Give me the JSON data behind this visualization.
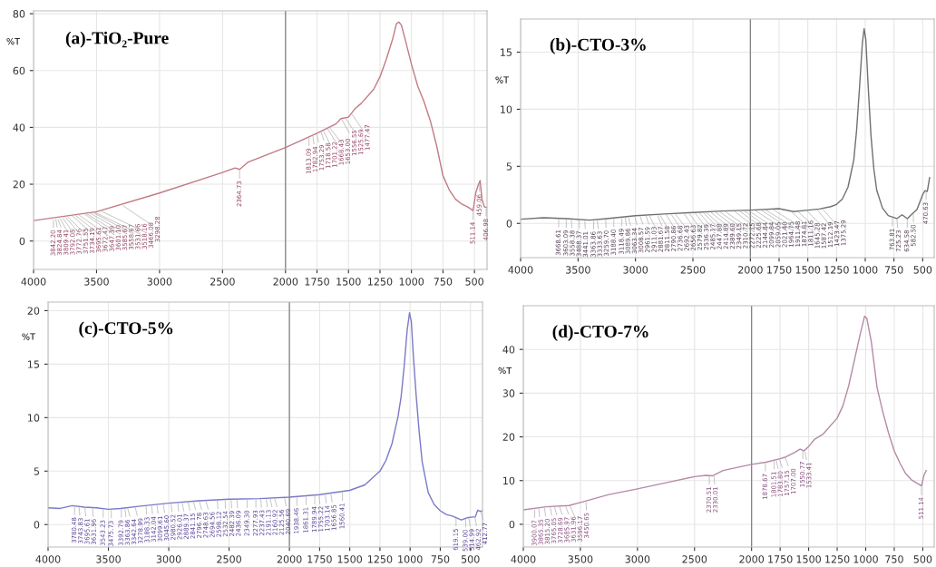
{
  "chart_data": [
    {
      "type": "line",
      "title": "(a)-TiO₂-Pure",
      "ylabel": "%T",
      "xlim": [
        4000,
        400
      ],
      "ylim": [
        -10,
        81
      ],
      "xticks": [
        4000,
        3500,
        3000,
        2500,
        2000,
        1750,
        1500,
        1250,
        1000,
        750,
        500
      ],
      "yticks": [
        0,
        20,
        40,
        60,
        80
      ],
      "grid": true,
      "ref_lines": [
        {
          "axis": "x",
          "value": 2000,
          "color": "#808080"
        }
      ],
      "series": [
        {
          "color": "#c27a84",
          "x": [
            4000,
            3500,
            3000,
            2500,
            2400,
            2364,
            2300,
            2000,
            1750,
            1600,
            1560,
            1500,
            1450,
            1400,
            1300,
            1250,
            1200,
            1150,
            1120,
            1100,
            1080,
            1050,
            1000,
            950,
            900,
            850,
            800,
            750,
            700,
            650,
            600,
            550,
            511,
            490,
            470,
            455,
            440,
            420,
            400
          ],
          "values": [
            7.2,
            10.3,
            16.9,
            24.1,
            25.7,
            25.2,
            27.7,
            32.9,
            37.9,
            41.2,
            43.1,
            43.6,
            46.5,
            48.4,
            53.4,
            57.8,
            63.9,
            71.0,
            76.4,
            77.1,
            76.0,
            71.0,
            62.2,
            54.5,
            49.0,
            42.3,
            33.5,
            23.0,
            18.0,
            14.7,
            13.0,
            11.9,
            10.7,
            16.9,
            19.7,
            21.3,
            14.7,
            11.9,
            11.9
          ]
        }
      ],
      "annotations": [
        {
          "text": "3842.20",
          "x": 3842.2,
          "y": 7.9
        },
        {
          "text": "3824.84",
          "x": 3824.84,
          "y": 8.0
        },
        {
          "text": "3809.41",
          "x": 3809.41,
          "y": 8.1
        },
        {
          "text": "3792.05",
          "x": 3792.05,
          "y": 8.2
        },
        {
          "text": "3772.76",
          "x": 3772.76,
          "y": 8.4
        },
        {
          "text": "3751.55",
          "x": 3751.55,
          "y": 8.6
        },
        {
          "text": "3734.19",
          "x": 3734.19,
          "y": 8.7
        },
        {
          "text": "3695.61",
          "x": 3695.61,
          "y": 9.0
        },
        {
          "text": "3672.47",
          "x": 3672.47,
          "y": 9.2
        },
        {
          "text": "3647.39",
          "x": 3647.39,
          "y": 9.4
        },
        {
          "text": "3601.10",
          "x": 3601.1,
          "y": 9.7
        },
        {
          "text": "3585.67",
          "x": 3585.67,
          "y": 9.8
        },
        {
          "text": "3558.67",
          "x": 3558.67,
          "y": 10.0
        },
        {
          "text": "3531.66",
          "x": 3531.66,
          "y": 10.1
        },
        {
          "text": "3518.16",
          "x": 3518.16,
          "y": 10.2
        },
        {
          "text": "3466.08",
          "x": 3466.08,
          "y": 10.6
        },
        {
          "text": "3298.28",
          "x": 3298.28,
          "y": 12.7
        },
        {
          "text": "2364.73",
          "x": 2364.73,
          "y": 25.2
        },
        {
          "text": "1813.09",
          "x": 1813.09,
          "y": 36.7
        },
        {
          "text": "1782.94",
          "x": 1782.94,
          "y": 37.3
        },
        {
          "text": "1753.29",
          "x": 1753.29,
          "y": 37.9
        },
        {
          "text": "1718.58",
          "x": 1718.58,
          "y": 38.6
        },
        {
          "text": "1701.22",
          "x": 1701.22,
          "y": 39.0
        },
        {
          "text": "1668.43",
          "x": 1668.43,
          "y": 39.8
        },
        {
          "text": "1653.00",
          "x": 1653.0,
          "y": 40.1
        },
        {
          "text": "1556.55",
          "x": 1556.55,
          "y": 43.1
        },
        {
          "text": "1525.69",
          "x": 1525.69,
          "y": 43.4
        },
        {
          "text": "1477.47",
          "x": 1477.47,
          "y": 45.0
        },
        {
          "text": "511.14",
          "x": 511.14,
          "y": 10.7
        },
        {
          "text": "459.06",
          "x": 459.06,
          "y": 20.5
        },
        {
          "text": "406.98",
          "x": 406.98,
          "y": 11.9
        }
      ]
    },
    {
      "type": "line",
      "title": "(b)-CTO-3%",
      "ylabel": "%T",
      "xlim": [
        4000,
        400
      ],
      "ylim": [
        -3,
        17.9
      ],
      "xticks": [
        4000,
        3500,
        3000,
        2500,
        2000,
        1750,
        1500,
        1250,
        1000,
        750,
        500
      ],
      "yticks": [
        0,
        5,
        10,
        15
      ],
      "grid": true,
      "ref_lines": [
        {
          "axis": "x",
          "value": 2000,
          "color": "#808080"
        }
      ],
      "series": [
        {
          "color": "#707070",
          "x": [
            4000,
            3800,
            3600,
            3400,
            3250,
            3000,
            2750,
            2500,
            2250,
            2000,
            1750,
            1625,
            1500,
            1400,
            1300,
            1250,
            1200,
            1150,
            1100,
            1075,
            1050,
            1025,
            1010,
            995,
            975,
            950,
            925,
            900,
            850,
            800,
            760,
            725,
            680,
            634,
            600,
            550,
            500,
            480,
            460,
            440
          ],
          "values": [
            0.37,
            0.5,
            0.42,
            0.29,
            0.42,
            0.68,
            0.82,
            0.95,
            1.08,
            1.16,
            1.29,
            1.03,
            1.16,
            1.26,
            1.47,
            1.66,
            2.13,
            3.18,
            5.55,
            8.2,
            11.9,
            15.8,
            17.05,
            16.1,
            12.1,
            7.66,
            4.76,
            2.9,
            1.34,
            0.68,
            0.55,
            0.42,
            0.76,
            0.42,
            0.76,
            1.21,
            2.53,
            2.87,
            2.8,
            4.0
          ]
        }
      ],
      "annotations": [
        {
          "text": "3668.61",
          "x": 3668.61,
          "y": 0.45
        },
        {
          "text": "3603.09",
          "x": 3603.09,
          "y": 0.42
        },
        {
          "text": "3558.38",
          "x": 3558.38,
          "y": 0.4
        },
        {
          "text": "3488.37",
          "x": 3488.37,
          "y": 0.35
        },
        {
          "text": "3441.01",
          "x": 3441.01,
          "y": 0.3
        },
        {
          "text": "3363.86",
          "x": 3363.86,
          "y": 0.3
        },
        {
          "text": "3333.63",
          "x": 3333.63,
          "y": 0.33
        },
        {
          "text": "3259.70",
          "x": 3259.7,
          "y": 0.4
        },
        {
          "text": "3188.40",
          "x": 3188.4,
          "y": 0.48
        },
        {
          "text": "3118.49",
          "x": 3118.49,
          "y": 0.55
        },
        {
          "text": "3089.86",
          "x": 3089.86,
          "y": 0.58
        },
        {
          "text": "3063.34",
          "x": 3063.34,
          "y": 0.6
        },
        {
          "text": "3008.57",
          "x": 3008.57,
          "y": 0.67
        },
        {
          "text": "2961.59",
          "x": 2961.59,
          "y": 0.7
        },
        {
          "text": "2911.03",
          "x": 2911.03,
          "y": 0.72
        },
        {
          "text": "2881.67",
          "x": 2881.67,
          "y": 0.74
        },
        {
          "text": "2811.58",
          "x": 2811.58,
          "y": 0.78
        },
        {
          "text": "2790.86",
          "x": 2790.86,
          "y": 0.8
        },
        {
          "text": "2736.68",
          "x": 2736.68,
          "y": 0.83
        },
        {
          "text": "2692.43",
          "x": 2692.43,
          "y": 0.85
        },
        {
          "text": "2656.63",
          "x": 2656.63,
          "y": 0.87
        },
        {
          "text": "2579.82",
          "x": 2579.82,
          "y": 0.91
        },
        {
          "text": "2536.39",
          "x": 2536.39,
          "y": 0.93
        },
        {
          "text": "2485.17",
          "x": 2485.17,
          "y": 0.96
        },
        {
          "text": "2447.88",
          "x": 2447.88,
          "y": 0.98
        },
        {
          "text": "2414.89",
          "x": 2414.89,
          "y": 1.0
        },
        {
          "text": "2389.60",
          "x": 2389.6,
          "y": 1.01
        },
        {
          "text": "2349.15",
          "x": 2349.15,
          "y": 1.03
        },
        {
          "text": "2310.72",
          "x": 2310.72,
          "y": 1.05
        },
        {
          "text": "2272.15",
          "x": 2272.15,
          "y": 1.07
        },
        {
          "text": "2225.68",
          "x": 2225.68,
          "y": 1.09
        },
        {
          "text": "2144.84",
          "x": 2144.84,
          "y": 1.11
        },
        {
          "text": "2099.84",
          "x": 2099.84,
          "y": 1.13
        },
        {
          "text": "2059.05",
          "x": 2059.05,
          "y": 1.14
        },
        {
          "text": "2021.40",
          "x": 2021.4,
          "y": 1.15
        },
        {
          "text": "1964.75",
          "x": 1964.75,
          "y": 1.18
        },
        {
          "text": "1911.48",
          "x": 1911.48,
          "y": 1.2
        },
        {
          "text": "1874.81",
          "x": 1874.81,
          "y": 1.22
        },
        {
          "text": "1811.16",
          "x": 1811.16,
          "y": 1.26
        },
        {
          "text": "1645.28",
          "x": 1645.28,
          "y": 1.06
        },
        {
          "text": "1587.42",
          "x": 1587.42,
          "y": 1.05
        },
        {
          "text": "1512.19",
          "x": 1512.19,
          "y": 1.14
        },
        {
          "text": "1423.47",
          "x": 1423.47,
          "y": 1.24
        },
        {
          "text": "1375.29",
          "x": 1375.29,
          "y": 1.3
        },
        {
          "text": "763.81",
          "x": 763.81,
          "y": 0.55
        },
        {
          "text": "725.23",
          "x": 725.23,
          "y": 0.42
        },
        {
          "text": "634.58",
          "x": 634.58,
          "y": 0.42
        },
        {
          "text": "582.50",
          "x": 582.5,
          "y": 0.9
        },
        {
          "text": "470.63",
          "x": 470.63,
          "y": 2.85
        }
      ]
    },
    {
      "type": "line",
      "title": "(c)-CTO-5%",
      "ylabel": "%T",
      "xlim": [
        4000,
        400
      ],
      "ylim": [
        -2.1,
        20.8
      ],
      "xticks": [
        4000,
        3500,
        3000,
        2500,
        2000,
        1750,
        1500,
        1250,
        1000,
        750,
        500
      ],
      "yticks": [
        0,
        5,
        10,
        15,
        20
      ],
      "grid": true,
      "ref_lines": [
        {
          "axis": "x",
          "value": 2000,
          "color": "#808080"
        }
      ],
      "series": [
        {
          "color": "#7a7ac8",
          "x": [
            4000,
            3900,
            3800,
            3700,
            3600,
            3500,
            3400,
            3250,
            3000,
            2750,
            2500,
            2250,
            2000,
            1750,
            1500,
            1375,
            1250,
            1200,
            1150,
            1100,
            1075,
            1050,
            1025,
            1005,
            990,
            975,
            950,
            925,
            900,
            850,
            800,
            750,
            700,
            650,
            575,
            530,
            480,
            460,
            440,
            420,
            400
          ],
          "values": [
            1.57,
            1.51,
            1.77,
            1.63,
            1.57,
            1.43,
            1.51,
            1.71,
            2.0,
            2.23,
            2.37,
            2.43,
            2.57,
            2.8,
            3.2,
            3.71,
            5.0,
            6.0,
            7.57,
            10.1,
            11.9,
            14.7,
            18.1,
            19.8,
            19.0,
            16.1,
            12.1,
            8.7,
            5.86,
            3.0,
            1.86,
            1.29,
            0.94,
            0.8,
            0.43,
            0.63,
            0.71,
            0.71,
            1.34,
            1.23,
            1.29
          ]
        }
      ],
      "annotations": [
        {
          "text": "3780.48",
          "x": 3780.48,
          "y": 1.75
        },
        {
          "text": "3743.83",
          "x": 3743.83,
          "y": 1.7
        },
        {
          "text": "3695.61",
          "x": 3695.61,
          "y": 1.63
        },
        {
          "text": "3631.96",
          "x": 3631.96,
          "y": 1.6
        },
        {
          "text": "3543.23",
          "x": 3543.23,
          "y": 1.5
        },
        {
          "text": "3475.73",
          "x": 3475.73,
          "y": 1.44
        },
        {
          "text": "3392.79",
          "x": 3392.79,
          "y": 1.51
        },
        {
          "text": "3363.86",
          "x": 3363.86,
          "y": 1.55
        },
        {
          "text": "3342.64",
          "x": 3342.64,
          "y": 1.6
        },
        {
          "text": "3278.99",
          "x": 3278.99,
          "y": 1.68
        },
        {
          "text": "3188.33",
          "x": 3188.33,
          "y": 1.78
        },
        {
          "text": "3142.04",
          "x": 3142.04,
          "y": 1.83
        },
        {
          "text": "3099.61",
          "x": 3099.61,
          "y": 1.88
        },
        {
          "text": "3045.60",
          "x": 3045.6,
          "y": 1.95
        },
        {
          "text": "2980.52",
          "x": 2980.52,
          "y": 2.02
        },
        {
          "text": "2926.01",
          "x": 2926.01,
          "y": 2.07
        },
        {
          "text": "2889.37",
          "x": 2889.37,
          "y": 2.1
        },
        {
          "text": "2841.15",
          "x": 2841.15,
          "y": 2.15
        },
        {
          "text": "2796.78",
          "x": 2796.78,
          "y": 2.2
        },
        {
          "text": "2748.63",
          "x": 2748.63,
          "y": 2.23
        },
        {
          "text": "2694.56",
          "x": 2694.56,
          "y": 2.26
        },
        {
          "text": "2598.12",
          "x": 2598.12,
          "y": 2.31
        },
        {
          "text": "2532.54",
          "x": 2532.54,
          "y": 2.35
        },
        {
          "text": "2482.39",
          "x": 2482.39,
          "y": 2.37
        },
        {
          "text": "2436.09",
          "x": 2436.09,
          "y": 2.39
        },
        {
          "text": "2349.30",
          "x": 2349.3,
          "y": 2.41
        },
        {
          "text": "2277.93",
          "x": 2277.93,
          "y": 2.42
        },
        {
          "text": "2237.43",
          "x": 2237.43,
          "y": 2.44
        },
        {
          "text": "2191.13",
          "x": 2191.13,
          "y": 2.46
        },
        {
          "text": "2160.92",
          "x": 2160.92,
          "y": 2.48
        },
        {
          "text": "2125.56",
          "x": 2125.56,
          "y": 2.5
        },
        {
          "text": "2040.69",
          "x": 2040.69,
          "y": 2.55
        },
        {
          "text": "1938.46",
          "x": 1938.46,
          "y": 2.62
        },
        {
          "text": "1861.31",
          "x": 1861.31,
          "y": 2.7
        },
        {
          "text": "1789.94",
          "x": 1789.94,
          "y": 2.76
        },
        {
          "text": "1755.22",
          "x": 1755.22,
          "y": 2.8
        },
        {
          "text": "1703.14",
          "x": 1703.14,
          "y": 2.86
        },
        {
          "text": "1656.85",
          "x": 1656.85,
          "y": 2.93
        },
        {
          "text": "1560.41",
          "x": 1560.41,
          "y": 3.08
        },
        {
          "text": "619.15",
          "x": 619.15,
          "y": 0.7
        },
        {
          "text": "539.00",
          "x": 539.0,
          "y": 0.6
        },
        {
          "text": "514.99",
          "x": 514.99,
          "y": 0.67
        },
        {
          "text": "462.92",
          "x": 462.92,
          "y": 0.71
        },
        {
          "text": "412.77",
          "x": 412.77,
          "y": 1.25
        }
      ]
    },
    {
      "type": "line",
      "title": "(d)-CTO-7%",
      "ylabel": "%T",
      "xlim": [
        4000,
        400
      ],
      "ylim": [
        -5.2,
        50
      ],
      "xticks": [
        4000,
        3500,
        3000,
        2500,
        2000,
        1750,
        1500,
        1250,
        1000,
        750,
        500
      ],
      "yticks": [
        0,
        10,
        20,
        30,
        40
      ],
      "grid": true,
      "ref_lines": [
        {
          "axis": "x",
          "value": 2000,
          "color": "#808080"
        }
      ],
      "series": [
        {
          "color": "#b48aa6",
          "x": [
            4000,
            3800,
            3600,
            3500,
            3250,
            3000,
            2750,
            2500,
            2400,
            2340,
            2250,
            2000,
            1875,
            1750,
            1700,
            1625,
            1575,
            1540,
            1500,
            1450,
            1375,
            1250,
            1200,
            1150,
            1100,
            1050,
            1010,
            990,
            950,
            900,
            850,
            800,
            750,
            700,
            650,
            600,
            511,
            490,
            470
          ],
          "values": [
            3.3,
            4.0,
            4.3,
            5.0,
            6.8,
            8.1,
            9.5,
            10.9,
            11.2,
            11.1,
            12.3,
            13.7,
            14.2,
            15.0,
            15.4,
            16.4,
            17.2,
            16.8,
            17.8,
            19.4,
            20.6,
            24.3,
            27.1,
            31.6,
            37.4,
            43.3,
            47.6,
            47.1,
            41.6,
            31.2,
            25.7,
            20.9,
            16.8,
            14.0,
            11.6,
            10.2,
            8.8,
            11.2,
            12.3
          ]
        }
      ],
      "annotations": [
        {
          "text": "3900.07",
          "x": 3900.07,
          "y": 3.6
        },
        {
          "text": "3865.35",
          "x": 3865.35,
          "y": 3.8
        },
        {
          "text": "3815.20",
          "x": 3815.2,
          "y": 3.9
        },
        {
          "text": "3765.05",
          "x": 3765.05,
          "y": 4.1
        },
        {
          "text": "3728.69",
          "x": 3728.69,
          "y": 4.2
        },
        {
          "text": "3685.97",
          "x": 3685.97,
          "y": 4.3
        },
        {
          "text": "3631.96",
          "x": 3631.96,
          "y": 4.4
        },
        {
          "text": "3596.17",
          "x": 3596.17,
          "y": 4.5
        },
        {
          "text": "3450.65",
          "x": 3450.65,
          "y": 5.3
        },
        {
          "text": "2370.51",
          "x": 2370.51,
          "y": 11.2
        },
        {
          "text": "2330.01",
          "x": 2330.01,
          "y": 11.2
        },
        {
          "text": "1878.67",
          "x": 1878.67,
          "y": 14.2
        },
        {
          "text": "1801.51",
          "x": 1801.51,
          "y": 14.7
        },
        {
          "text": "1783.80",
          "x": 1783.8,
          "y": 14.8
        },
        {
          "text": "1757.15",
          "x": 1757.15,
          "y": 15.0
        },
        {
          "text": "1707.00",
          "x": 1707.0,
          "y": 15.4
        },
        {
          "text": "1550.77",
          "x": 1550.77,
          "y": 17.0
        },
        {
          "text": "1533.41",
          "x": 1533.41,
          "y": 16.8
        },
        {
          "text": "511.14",
          "x": 511.14,
          "y": 8.8
        }
      ]
    }
  ]
}
